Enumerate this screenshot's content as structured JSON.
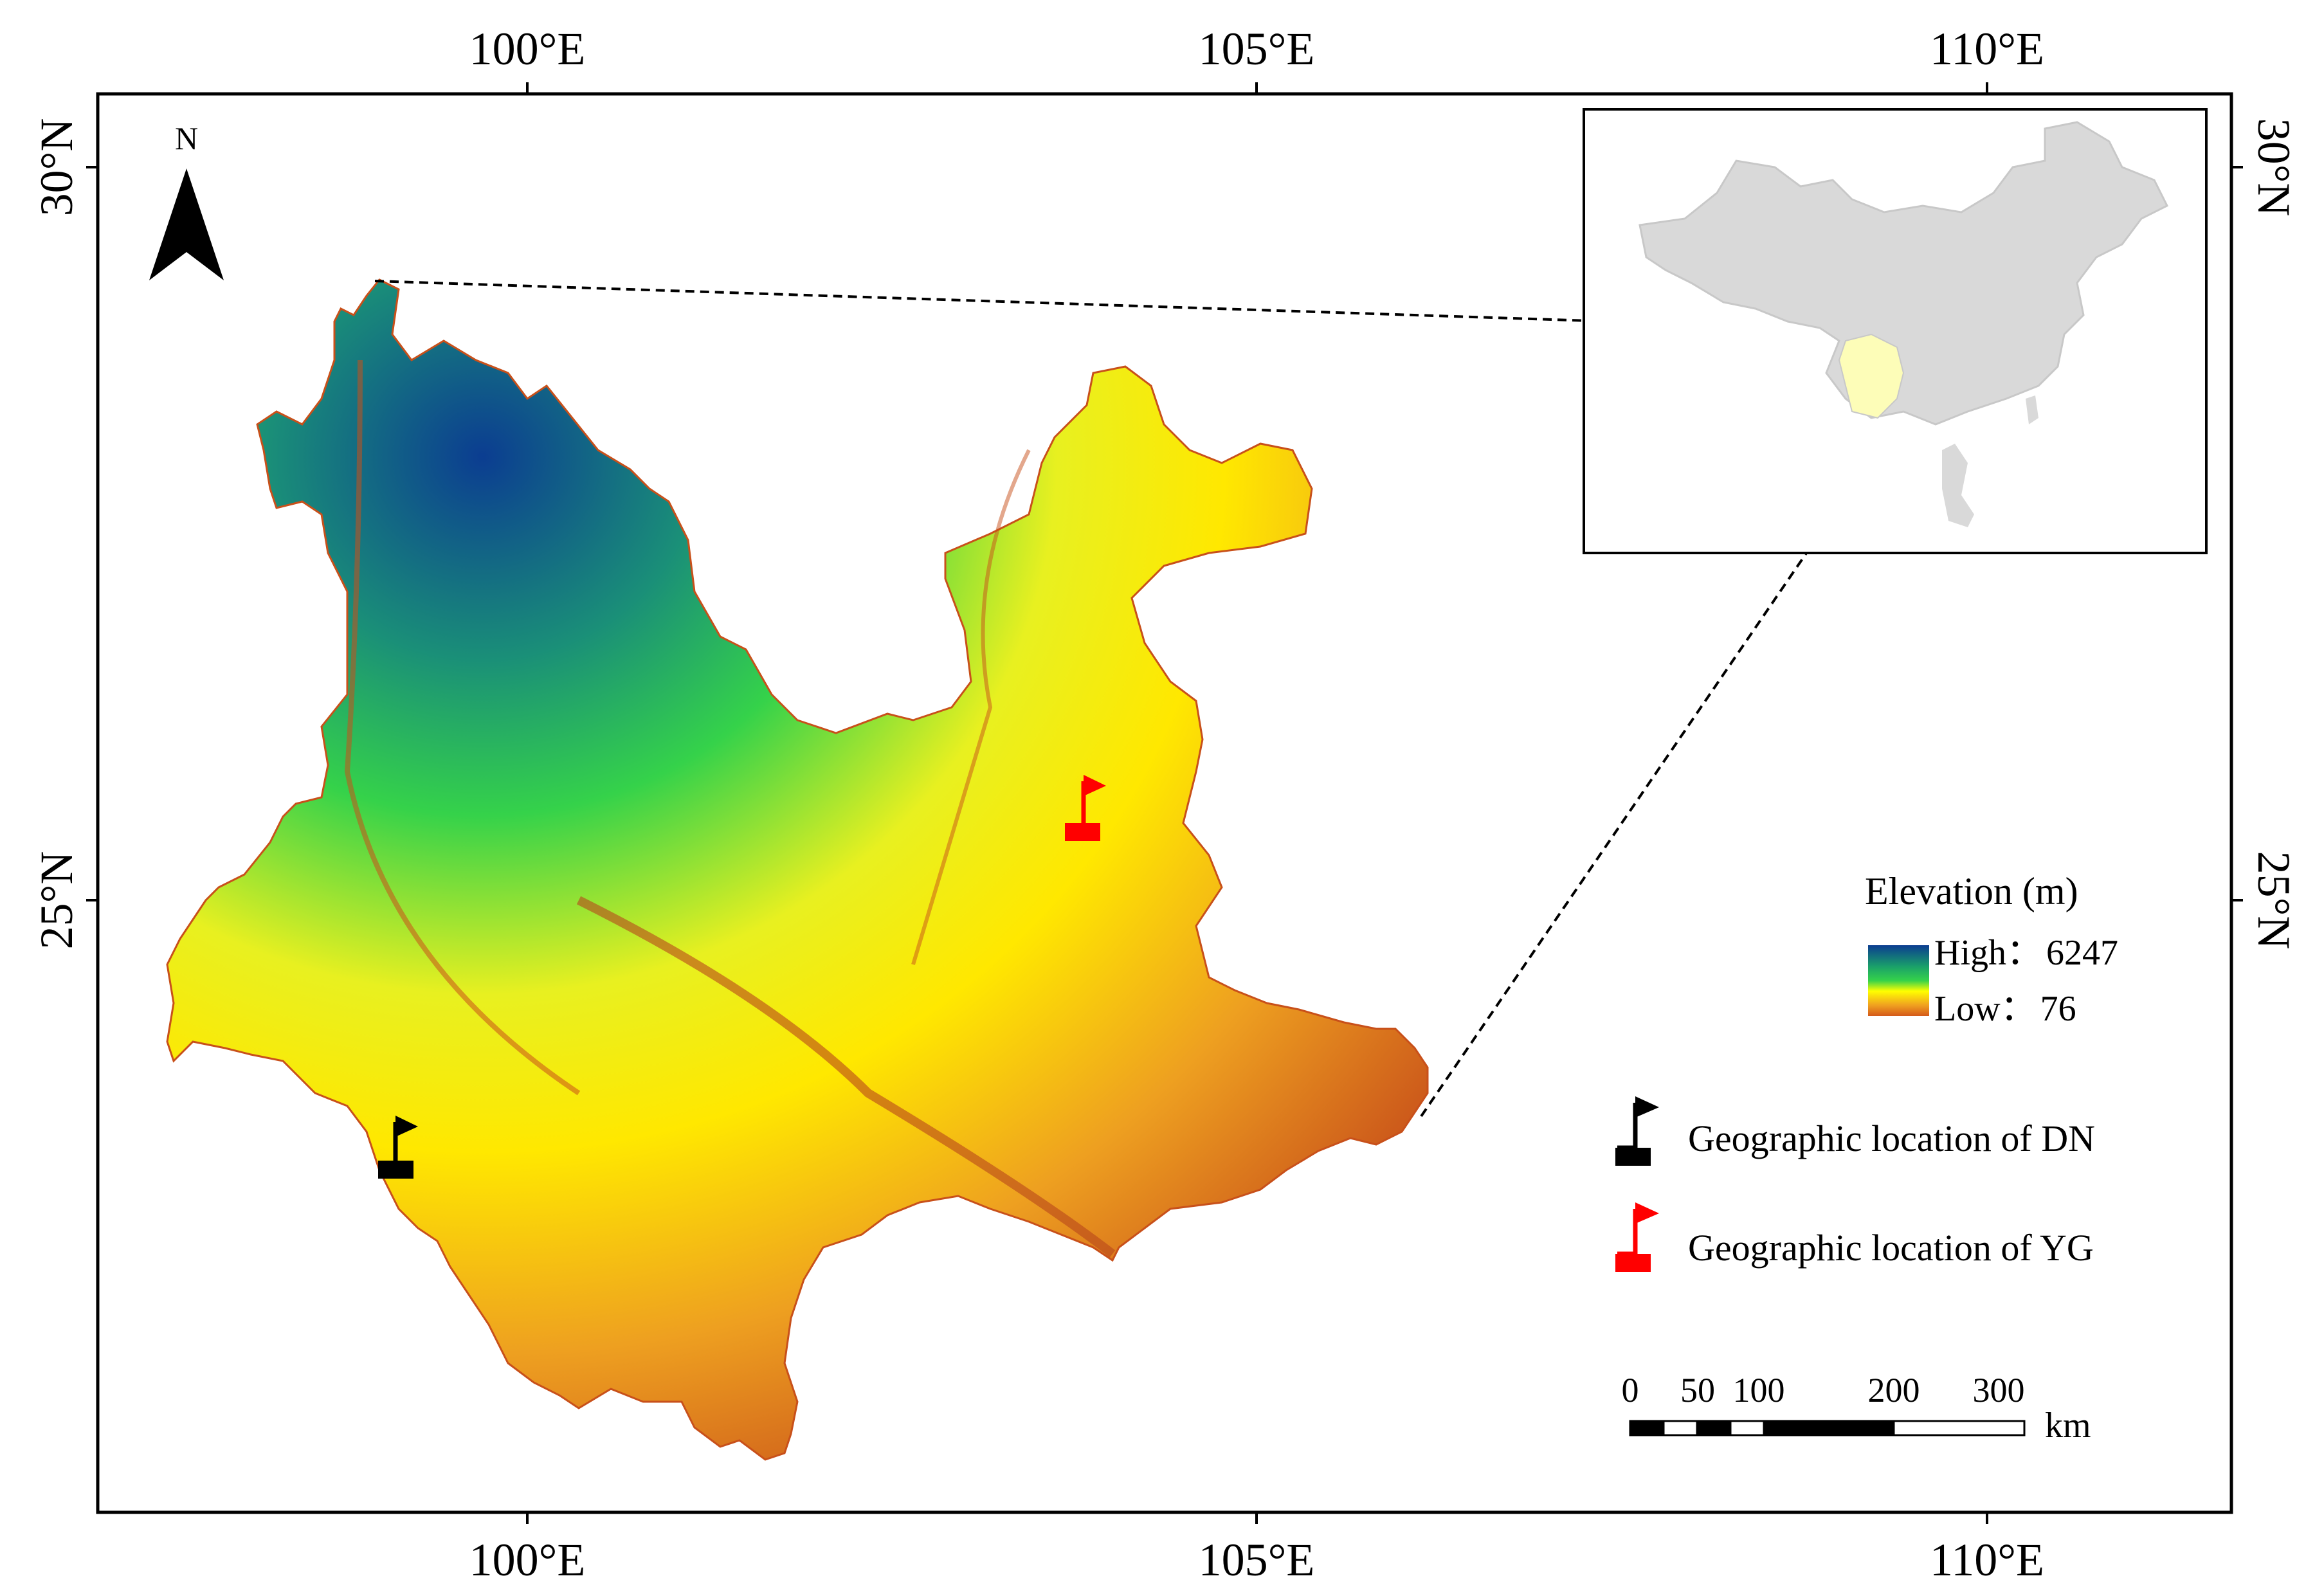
{
  "north_arrow": {
    "label": "N"
  },
  "axes": {
    "top_ticks": [
      "100°E",
      "105°E",
      "110°E"
    ],
    "bottom_ticks": [
      "100°E",
      "105°E",
      "110°E"
    ],
    "left_ticks": [
      "30°N",
      "25°N"
    ],
    "right_ticks": [
      "30°N",
      "25°N"
    ]
  },
  "legend": {
    "elevation_title": "Elevation (m)",
    "high_label": "High",
    "high_value": "6247",
    "low_label": "Low",
    "low_value": "76",
    "separator": "：",
    "ramp_colors": [
      "#0b3d91",
      "#1aa06a",
      "#35d24a",
      "#ffff00",
      "#f0a020",
      "#d45a1a"
    ],
    "marker_dn_label": "Geographic location of DN",
    "marker_yg_label": "Geographic location of YG",
    "marker_dn_color": "#000000",
    "marker_yg_color": "#ff0000"
  },
  "scale_bar": {
    "ticks": [
      "0",
      "50",
      "100",
      "200",
      "300"
    ],
    "unit": "km"
  },
  "inset": {
    "region_name": "",
    "highlight_color": "#fdfdb8",
    "land_color": "#d9d9d9"
  }
}
